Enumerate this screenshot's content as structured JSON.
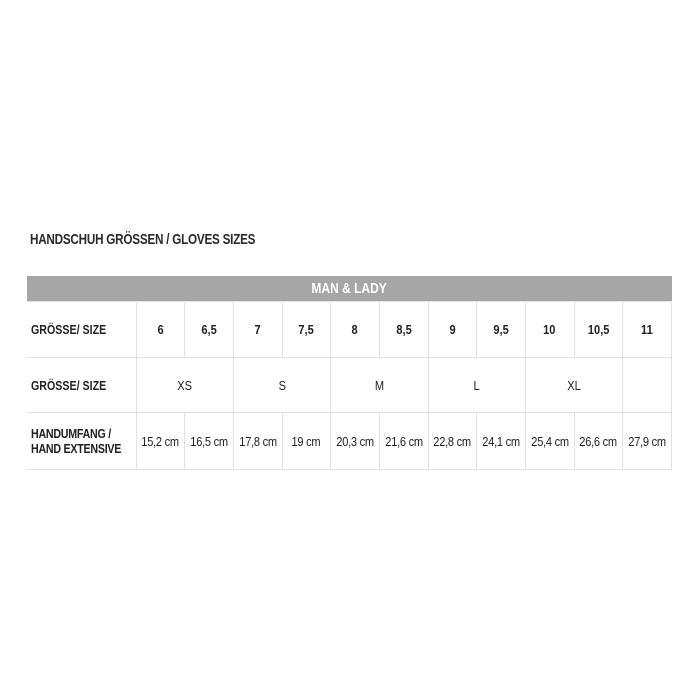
{
  "title": "HANDSCHUH GRÖSSEN / GLOVES SIZES",
  "table": {
    "header": "MAN & LADY",
    "colors": {
      "header_bg": "#a6a6a6",
      "header_text": "#ffffff",
      "border": "#e2e2e2"
    },
    "row_size_numeric": {
      "label": "GRÖSSE/ SIZE",
      "values": [
        "6",
        "6,5",
        "7",
        "7,5",
        "8",
        "8,5",
        "9",
        "9,5",
        "10",
        "10,5",
        "11"
      ]
    },
    "row_size_letter": {
      "label": "GRÖSSE/ SIZE",
      "values": [
        "XS",
        "S",
        "M",
        "L",
        "XL"
      ]
    },
    "row_hand": {
      "label_line1": "HANDUMFANG /",
      "label_line2": "HAND EXTENSIVE",
      "values": [
        "15,2 cm",
        "16,5 cm",
        "17,8 cm",
        "19 cm",
        "20,3 cm",
        "21,6 cm",
        "22,8 cm",
        "24,1 cm",
        "25,4 cm",
        "26,6 cm",
        "27,9 cm"
      ]
    }
  }
}
